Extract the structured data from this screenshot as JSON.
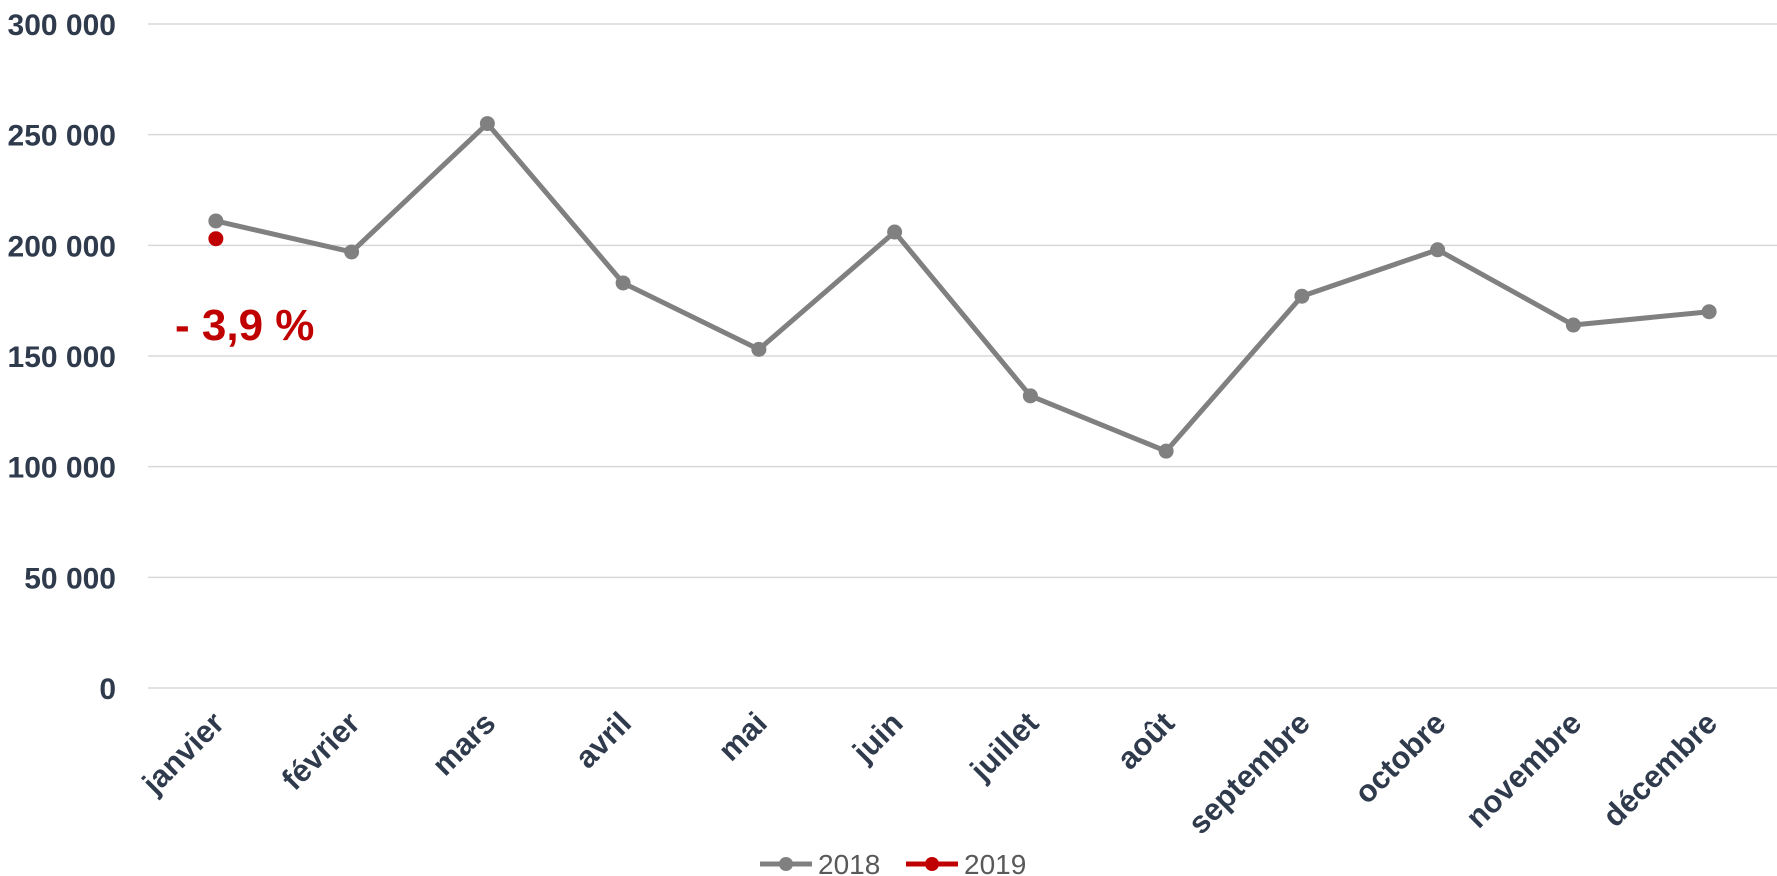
{
  "chart_data": {
    "type": "line",
    "categories": [
      "janvier",
      "février",
      "mars",
      "avril",
      "mai",
      "juin",
      "juillet",
      "août",
      "septembre",
      "octobre",
      "novembre",
      "décembre"
    ],
    "series": [
      {
        "name": "2018",
        "color": "#808080",
        "values": [
          211000,
          197000,
          255000,
          183000,
          153000,
          206000,
          132000,
          107000,
          177000,
          198000,
          164000,
          170000
        ]
      },
      {
        "name": "2019",
        "color": "#c00000",
        "values": [
          203000,
          null,
          null,
          null,
          null,
          null,
          null,
          null,
          null,
          null,
          null,
          null
        ]
      }
    ],
    "ylim": [
      0,
      300000
    ],
    "yticks": [
      0,
      50000,
      100000,
      150000,
      200000,
      250000,
      300000
    ],
    "ytick_labels": [
      "0",
      "50 000",
      "100 000",
      "150 000",
      "200 000",
      "250 000",
      "300 000"
    ],
    "grid": true,
    "legend_position": "bottom",
    "annotation": {
      "text": "- 3,9 %",
      "color": "#c00000"
    },
    "title": "",
    "xlabel": "",
    "ylabel": ""
  }
}
